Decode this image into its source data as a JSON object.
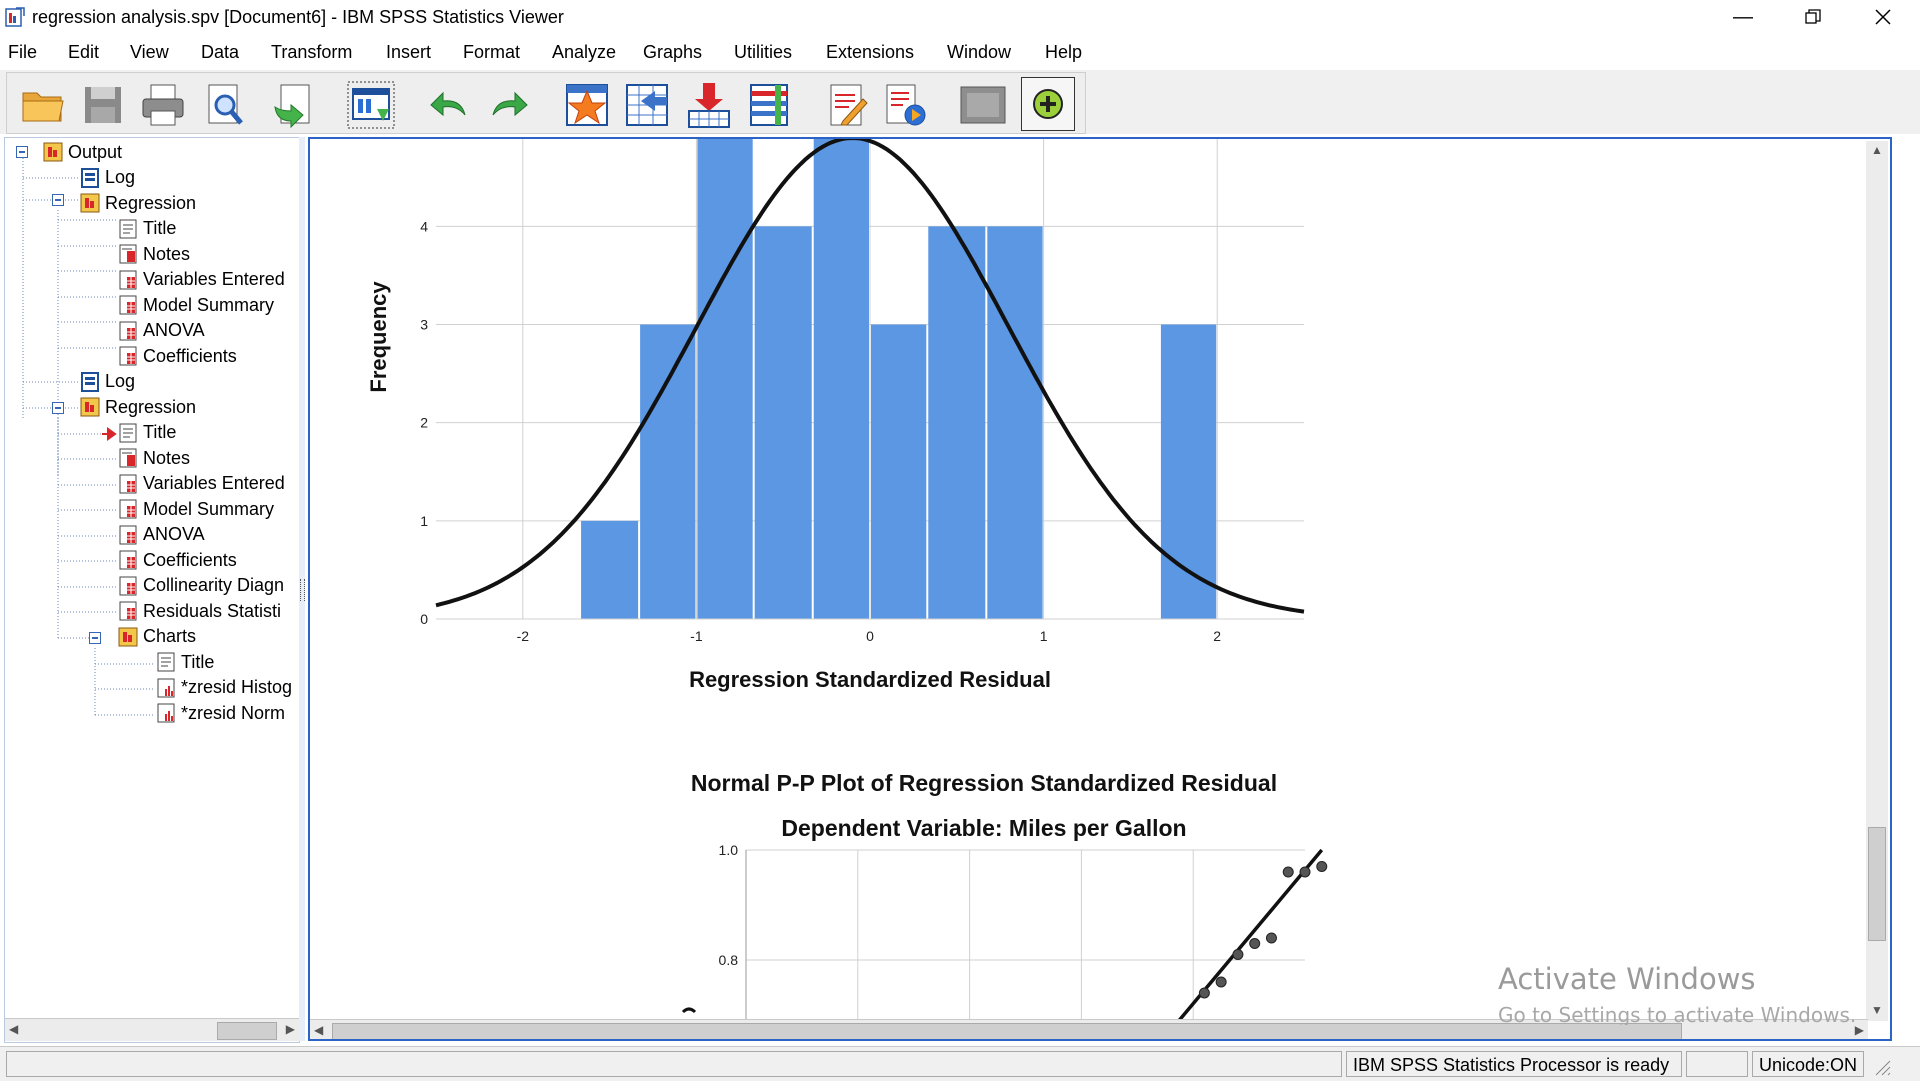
{
  "window": {
    "title": "regression analysis.spv [Document6] - IBM SPSS Statistics Viewer"
  },
  "menu": [
    "File",
    "Edit",
    "View",
    "Data",
    "Transform",
    "Insert",
    "Format",
    "Analyze",
    "Graphs",
    "Utilities",
    "Extensions",
    "Window",
    "Help"
  ],
  "toolbar": {
    "icons": [
      "open-folder-icon",
      "save-icon",
      "print-icon",
      "print-preview-icon",
      "export-icon",
      "designated-window-icon",
      "undo-icon",
      "redo-icon",
      "goto-data-icon",
      "goto-case-icon",
      "insert-variable-icon",
      "select-cases-icon",
      "insert-output-icon",
      "script-icon",
      "hide-icon",
      "add-icon"
    ]
  },
  "tree": {
    "items": [
      {
        "label": "Output",
        "icon": "output-folder-icon",
        "level": 0
      },
      {
        "label": "Log",
        "icon": "log-icon",
        "level": 2
      },
      {
        "label": "Regression",
        "icon": "folder-icon",
        "level": 2
      },
      {
        "label": "Title",
        "icon": "title-icon",
        "level": 3
      },
      {
        "label": "Notes",
        "icon": "notes-icon",
        "level": 3
      },
      {
        "label": "Variables Entered",
        "icon": "table-icon",
        "level": 3
      },
      {
        "label": "Model Summary",
        "icon": "table-icon",
        "level": 3
      },
      {
        "label": "ANOVA",
        "icon": "table-icon",
        "level": 3
      },
      {
        "label": "Coefficients",
        "icon": "table-icon",
        "level": 3
      },
      {
        "label": "Log",
        "icon": "log-icon",
        "level": 2
      },
      {
        "label": "Regression",
        "icon": "folder-icon",
        "level": 2
      },
      {
        "label": "Title",
        "icon": "title-icon",
        "level": 3
      },
      {
        "label": "Notes",
        "icon": "notes-icon",
        "level": 3
      },
      {
        "label": "Variables Entered",
        "icon": "table-icon",
        "level": 3
      },
      {
        "label": "Model Summary",
        "icon": "table-icon",
        "level": 3
      },
      {
        "label": "ANOVA",
        "icon": "table-icon",
        "level": 3
      },
      {
        "label": "Coefficients",
        "icon": "table-icon",
        "level": 3
      },
      {
        "label": "Collinearity Diagn",
        "icon": "table-icon",
        "level": 3
      },
      {
        "label": "Residuals Statisti",
        "icon": "table-icon",
        "level": 3
      },
      {
        "label": "Charts",
        "icon": "folder-icon",
        "level": 3
      },
      {
        "label": "Title",
        "icon": "title-icon",
        "level": 4
      },
      {
        "label": "*zresid Histog",
        "icon": "chart-icon",
        "level": 4
      },
      {
        "label": "*zresid Norm",
        "icon": "chart-icon",
        "level": 4
      }
    ]
  },
  "chart_data": [
    {
      "type": "bar",
      "xlabel": "Regression Standardized Residual",
      "ylabel": "Frequency",
      "x_ticks": [
        -2,
        -1,
        0,
        1,
        2
      ],
      "y_ticks": [
        0,
        1,
        2,
        3,
        4
      ],
      "bins": [
        {
          "x0": -1.67,
          "x1": -1.33,
          "count": 1
        },
        {
          "x0": -1.33,
          "x1": -1.0,
          "count": 3
        },
        {
          "x0": -1.0,
          "x1": -0.67,
          "count": 5
        },
        {
          "x0": -0.67,
          "x1": -0.33,
          "count": 4
        },
        {
          "x0": -0.33,
          "x1": 0.0,
          "count": 5
        },
        {
          "x0": 0.0,
          "x1": 0.33,
          "count": 3
        },
        {
          "x0": 0.33,
          "x1": 0.67,
          "count": 4
        },
        {
          "x0": 0.67,
          "x1": 1.0,
          "count": 4
        },
        {
          "x0": 1.67,
          "x1": 2.0,
          "count": 3
        }
      ],
      "curve": "normal",
      "curve_mean": -0.1,
      "curve_sd": 0.9,
      "curve_peak": 4.9,
      "bar_color": "#5b97e3",
      "grid": true
    },
    {
      "type": "scatter",
      "title": "Normal P-P Plot of Regression Standardized Residual",
      "subtitle": "Dependent Variable: Miles per Gallon",
      "y_ticks": [
        1.0,
        0.8
      ],
      "points": [
        [
          0.82,
          0.74
        ],
        [
          0.85,
          0.76
        ],
        [
          0.88,
          0.81
        ],
        [
          0.91,
          0.83
        ],
        [
          0.94,
          0.84
        ],
        [
          0.97,
          0.96
        ],
        [
          1.0,
          0.96
        ],
        [
          1.03,
          0.97
        ]
      ],
      "grid": true
    }
  ],
  "status": {
    "processor": "IBM SPSS Statistics Processor is ready",
    "unicode": "Unicode:ON"
  },
  "watermark": {
    "line1": "Activate Windows",
    "line2": "Go to Settings to activate Windows."
  }
}
